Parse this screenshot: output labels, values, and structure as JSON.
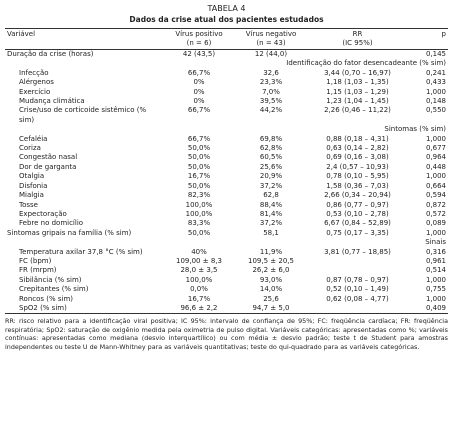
{
  "title": "TABELA 4",
  "subtitle": "Dados da crise atual dos pacientes estudados",
  "table": {
    "header": [
      [
        "Variável"
      ],
      [
        "Vírus positivo",
        "(n = 6)"
      ],
      [
        "Vírus negativo",
        "(n = 43)"
      ],
      [
        "RR",
        "(IC 95%)"
      ],
      [
        "p"
      ]
    ],
    "body": [
      {
        "variable": "Duração da crise (horas)",
        "pos": "42 (43,5)",
        "neg": "12 (44,0)",
        "p": "0,145"
      },
      {
        "label": "Identificação do fator desencadeante (% sim)",
        "rows": [
          {
            "variable": "Infecção",
            "pos": "66,7%",
            "neg": "32,6",
            "rr": "3,44 (0,70 – 16,97)",
            "p": "0,241"
          },
          {
            "variable": "Alérgenos",
            "pos": "0%",
            "neg": "23,3%",
            "rr": "1,18 (1,03 – 1,35)",
            "p": "0,433"
          },
          {
            "variable": "Exercício",
            "pos": "0%",
            "neg": "7,0%",
            "rr": "1,15 (1,03 – 1,29)",
            "p": "1,000"
          },
          {
            "variable": "Mudança climática",
            "pos": "0%",
            "neg": "39,5%",
            "rr": "1,23 (1,04 – 1,45)",
            "p": "0,148"
          },
          {
            "variable": "Crise/uso de corticoide sistêmico (% sim)",
            "pos": "66,7%",
            "neg": "44,2%",
            "rr": "2,26 (0,46 – 11,22)",
            "p": "0,550"
          }
        ]
      },
      {
        "label": "Sintomas (% sim)",
        "rows": [
          {
            "variable": "Cefaléia",
            "pos": "66,7%",
            "neg": "69,8%",
            "rr": "0,88 (0,18 – 4,31)",
            "p": "1,000"
          },
          {
            "variable": "Coriza",
            "pos": "50,0%",
            "neg": "62,8%",
            "rr": "0,63 (0,14 – 2,82)",
            "p": "0,677"
          },
          {
            "variable": "Congestão nasal",
            "pos": "50,0%",
            "neg": "60,5%",
            "rr": "0,69 (0,16 – 3,08)",
            "p": "0,964"
          },
          {
            "variable": "Dor de garganta",
            "pos": "50,0%",
            "neg": "25,6%",
            "rr": "2,4 (0,57 – 10,93)",
            "p": "0,448"
          },
          {
            "variable": "Otalgia",
            "pos": "16,7%",
            "neg": "20,9%",
            "rr": "0,78 (0,10 – 5,95)",
            "p": "1,000"
          },
          {
            "variable": "Disfonia",
            "pos": "50,0%",
            "neg": "37,2%",
            "rr": "1,58 (0,36 – 7,03)",
            "p": "0,664"
          },
          {
            "variable": "Mialgia",
            "pos": "82,3%",
            "neg": "62,8",
            "rr": "2,66 (0,34 – 20,94)",
            "p": "0,594"
          },
          {
            "variable": "Tosse",
            "pos": "100,0%",
            "neg": "88,4%",
            "rr": "0,86 (0,77 – 0,97)",
            "p": "0,872"
          },
          {
            "variable": "Expectoração",
            "pos": "100,0%",
            "neg": "81,4%",
            "rr": "0,53 (0,10 – 2,78)",
            "p": "0,572"
          },
          {
            "variable": "Febre no domicílio",
            "pos": "83,3%",
            "neg": "37,2%",
            "rr": "6,67 (0,84 – 52,89)",
            "p": "0,089"
          }
        ]
      },
      {
        "variable": "Sintomas gripais na família (% sim)",
        "pos": "50,0%",
        "neg": "58,1",
        "rr": "0,75 (0,17 – 3,35)",
        "p": "1,000"
      },
      {
        "label": "Sinais",
        "rows": [
          {
            "variable": "Temperatura axilar 37,8 °C (% sim)",
            "pos": "40%",
            "neg": "11,9%",
            "rr": "3,81 (0,77 – 18,85)",
            "p": "0,316"
          },
          {
            "variable": "FC (bpm)",
            "pos": "109,00 ± 8,3",
            "neg": "109,5 ± 20,5",
            "p": "0,961"
          },
          {
            "variable": "FR (mrpm)",
            "pos": "28,0 ± 3,5",
            "neg": "26,2 ± 6,0",
            "p": "0,514"
          },
          {
            "variable": "Sibilância (% sim)",
            "pos": "100,0%",
            "neg": "93,0%",
            "rr": "0,87 (0,78 – 0,97)",
            "p": "1,000"
          },
          {
            "variable": "Crepitantes (% sim)",
            "pos": "0,0%",
            "neg": "14,0%",
            "rr": "0,52 (0,10 – 1,49)",
            "p": "0,755"
          },
          {
            "variable": "Roncos (% sim)",
            "pos": "16,7%",
            "neg": "25,6",
            "rr": "0,62 (0,08 – 4,77)",
            "p": "1,000"
          },
          {
            "variable": "SpO2 (% sim)",
            "pos": "96,6 ± 2,2",
            "neg": "94,7 ± 5,0",
            "p": "0,409"
          }
        ]
      }
    ]
  },
  "footnote": "RR: risco relativo para a identificação viral positiva; IC 95%: intervalo de confiança de 95%; FC: freqüência cardíaca; FR: freqüência respiratória; SpO2: saturação de oxigênio medida pela oximetria de pulso digital. Variáveis categóricas: apresentadas como %; variáveis contínuas: apresentadas como mediana (desvio interquartílico) ou com média ± desvio padrão; teste t de Student para amostras independentes ou teste U de Mann-Whitney para as variáveis quantitativas; teste do qui-quadrado para as variáveis categóricas."
}
